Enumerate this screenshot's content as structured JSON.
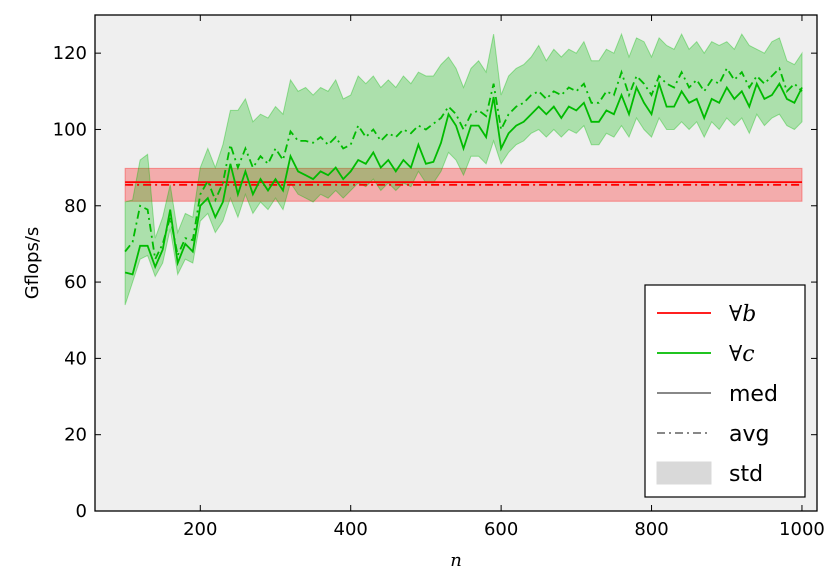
{
  "chart_data": {
    "type": "line",
    "xlabel": "n",
    "ylabel": "Gflops/s",
    "xlim": [
      60,
      1020
    ],
    "ylim": [
      0,
      130
    ],
    "xticks": [
      200,
      400,
      600,
      800,
      1000
    ],
    "yticks": [
      0,
      20,
      40,
      60,
      80,
      100,
      120
    ],
    "grid": false,
    "legend_position": "bottom-right",
    "colors": {
      "b": "#ff0000",
      "c": "#00bb00",
      "style": "#777777",
      "std_fill": "#d9d9d9",
      "background": "#efefef"
    },
    "legend": [
      {
        "key": "b",
        "label": "∀b",
        "kind": "line",
        "color": "#ff0000"
      },
      {
        "key": "c",
        "label": "∀c",
        "kind": "line",
        "color": "#00bb00"
      },
      {
        "key": "med",
        "label": "med",
        "kind": "solid"
      },
      {
        "key": "avg",
        "label": "avg",
        "kind": "dashdot"
      },
      {
        "key": "std",
        "label": "std",
        "kind": "patch"
      }
    ],
    "series": [
      {
        "name": "∀b",
        "x": [
          100,
          1000
        ],
        "med": [
          86.2,
          86.2
        ],
        "avg": [
          85.5,
          85.5
        ],
        "std_low": [
          81.2,
          81.2
        ],
        "std_high": [
          89.8,
          89.8
        ]
      },
      {
        "name": "∀c",
        "x": [
          100,
          110,
          120,
          130,
          140,
          150,
          160,
          170,
          180,
          190,
          200,
          210,
          220,
          230,
          240,
          250,
          260,
          270,
          280,
          290,
          300,
          310,
          320,
          330,
          340,
          350,
          360,
          370,
          380,
          390,
          400,
          410,
          420,
          430,
          440,
          450,
          460,
          470,
          480,
          490,
          500,
          510,
          520,
          530,
          540,
          550,
          560,
          570,
          580,
          590,
          600,
          610,
          620,
          630,
          640,
          650,
          660,
          670,
          680,
          690,
          700,
          710,
          720,
          730,
          740,
          750,
          760,
          770,
          780,
          790,
          800,
          810,
          820,
          830,
          840,
          850,
          860,
          870,
          880,
          890,
          900,
          910,
          920,
          930,
          940,
          950,
          960,
          970,
          980,
          990,
          1000
        ],
        "med": [
          62.5,
          62,
          69.5,
          69.5,
          64,
          68.5,
          79,
          65,
          70,
          68,
          80,
          82,
          77,
          81,
          91,
          83,
          89,
          83,
          87,
          84,
          87,
          84,
          93,
          89,
          88,
          87,
          89,
          88,
          90,
          87,
          89,
          92,
          91,
          94,
          90,
          92,
          89,
          92,
          90,
          96,
          91,
          91.5,
          96.5,
          104,
          101,
          95,
          101,
          101,
          98,
          108.5,
          95,
          99,
          101,
          102,
          104,
          106,
          104,
          106,
          103,
          106,
          105,
          107,
          102,
          102,
          105,
          104,
          109,
          104,
          111,
          107,
          104,
          112,
          106,
          106,
          110,
          107,
          108,
          103,
          108,
          107,
          111,
          108,
          110,
          106,
          112,
          108,
          109,
          112,
          108,
          107,
          111
        ],
        "avg": [
          68,
          70.5,
          80,
          79,
          66,
          70,
          77,
          67,
          71.5,
          71,
          83,
          86.5,
          81.5,
          86,
          96,
          90,
          95,
          90,
          93,
          91,
          95,
          92,
          99.5,
          97,
          97,
          96.5,
          98,
          96,
          98,
          95,
          96,
          101,
          98,
          100,
          97,
          99,
          98,
          100,
          99,
          101,
          100,
          101.5,
          103,
          106,
          104,
          100,
          104,
          105,
          103.5,
          112,
          100,
          104,
          106,
          107,
          109,
          110,
          108,
          110,
          109,
          111,
          110,
          112,
          107,
          107,
          110,
          109,
          115,
          109,
          114,
          112,
          109,
          114,
          112,
          111,
          115,
          111,
          113,
          110,
          113,
          112,
          116,
          113,
          115,
          111,
          114,
          112,
          114,
          116,
          110,
          112,
          110
        ],
        "std_low": [
          54,
          60,
          66,
          67,
          61.5,
          65,
          74,
          62,
          66,
          65,
          76,
          78,
          73,
          76,
          82,
          77,
          83,
          78,
          81,
          79,
          82,
          79,
          86,
          83,
          82,
          81,
          83,
          82,
          84,
          82,
          84,
          86,
          85,
          87,
          84,
          86,
          84,
          86,
          85,
          89,
          86,
          86,
          89,
          94,
          92,
          88,
          93,
          93,
          91,
          97,
          91,
          94,
          96,
          97,
          99,
          100,
          98,
          100,
          98,
          100,
          99,
          101,
          96,
          96,
          99,
          98,
          101,
          98,
          103,
          100,
          98,
          103,
          100,
          100,
          102,
          100,
          102,
          98,
          102,
          100,
          103,
          101,
          103,
          99,
          104,
          101,
          103,
          104,
          101,
          100,
          102
        ],
        "std_high": [
          81,
          81.5,
          92,
          93.5,
          71.5,
          77,
          85.5,
          73,
          78,
          77,
          90,
          95,
          90,
          96,
          105,
          105,
          108,
          102,
          104,
          103,
          106,
          104,
          113,
          110,
          111,
          109,
          111,
          110,
          113,
          108,
          109,
          114,
          112,
          114,
          111,
          113,
          111,
          114,
          112,
          115,
          114,
          114,
          117,
          119,
          116,
          111,
          116,
          118,
          115,
          125,
          109,
          114,
          116,
          117,
          119,
          122,
          118,
          121,
          119,
          121,
          120,
          123,
          118,
          118,
          121,
          120,
          125,
          119,
          124,
          123,
          119,
          124,
          122,
          121,
          125,
          121,
          123,
          120,
          123,
          122,
          123,
          121,
          125,
          122,
          121,
          120,
          123,
          124,
          118,
          117,
          120
        ]
      }
    ]
  }
}
